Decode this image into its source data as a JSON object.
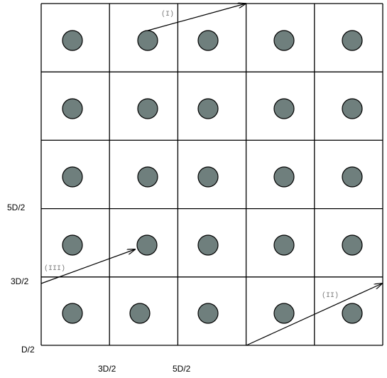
{
  "arrows": [
    {
      "label": "(I)"
    },
    {
      "label": "(II)"
    },
    {
      "label": "(III)"
    }
  ],
  "axis_labels": {
    "y": [
      "5D/2",
      "3D/2",
      "D/2"
    ],
    "x": [
      "3D/2",
      "5D/2"
    ]
  }
}
